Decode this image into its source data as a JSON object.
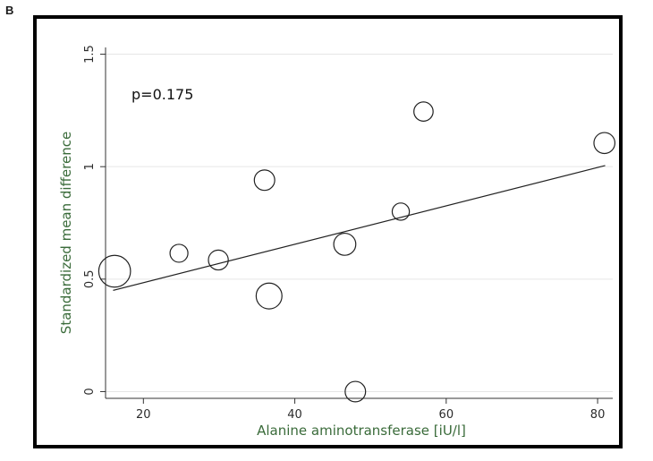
{
  "panel_label": "B",
  "chart_data": {
    "type": "scatter",
    "title": "",
    "xlabel": "Alanine aminotransferase [iU/l]",
    "ylabel": "Standardized mean difference",
    "xlim": [
      15,
      82
    ],
    "ylim": [
      -0.03,
      1.53
    ],
    "xticks": [
      20,
      40,
      60,
      80
    ],
    "xtick_labels": [
      "20",
      "40",
      "60",
      "80"
    ],
    "yticks": [
      0,
      0.5,
      1,
      1.5
    ],
    "ytick_labels": [
      "0",
      "0.5",
      "1",
      "1.5"
    ],
    "grid": "horizontal",
    "annotation": "p=0.175",
    "points": [
      {
        "x": 16.2,
        "y": 0.535,
        "weight": 20
      },
      {
        "x": 24.7,
        "y": 0.615,
        "weight": 4.5
      },
      {
        "x": 29.9,
        "y": 0.585,
        "weight": 6
      },
      {
        "x": 36.0,
        "y": 0.94,
        "weight": 6.5
      },
      {
        "x": 36.6,
        "y": 0.425,
        "weight": 12
      },
      {
        "x": 46.6,
        "y": 0.655,
        "weight": 8
      },
      {
        "x": 48.0,
        "y": 0.0,
        "weight": 6.5
      },
      {
        "x": 54.0,
        "y": 0.8,
        "weight": 4
      },
      {
        "x": 57.0,
        "y": 1.245,
        "weight": 5.5
      },
      {
        "x": 80.9,
        "y": 1.105,
        "weight": 7
      }
    ],
    "fit_line": {
      "x": [
        16.0,
        81.0
      ],
      "y": [
        0.45,
        1.005
      ]
    },
    "colors": {
      "axis_title": "#3a6b3a",
      "marker": "#222222",
      "fit": "#222222",
      "grid": "#e6e6e6",
      "frame": "#000000"
    }
  }
}
